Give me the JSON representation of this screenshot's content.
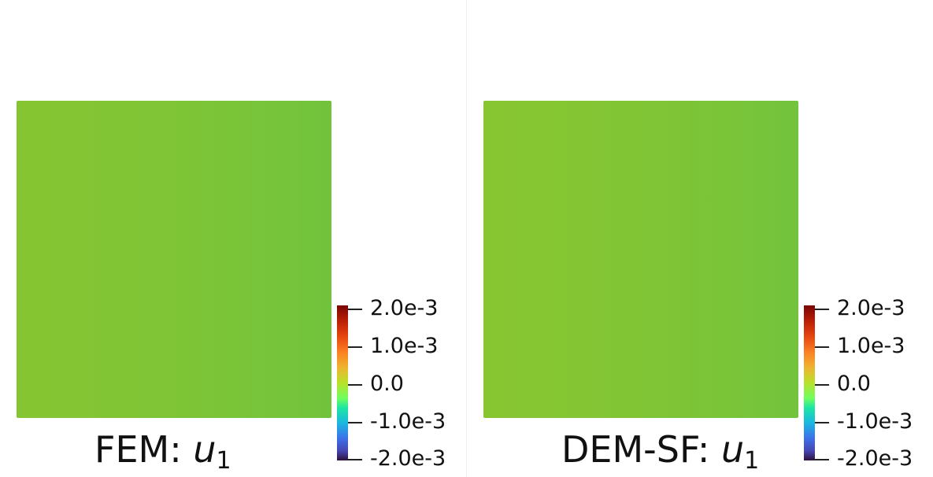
{
  "panels": [
    {
      "id": "fem",
      "title_prefix": "FEM: ",
      "variable": "u",
      "subscript": "1",
      "colorbar_ticks": [
        "2.0e-3",
        "1.0e-3",
        "0.0",
        "-1.0e-3",
        "-2.0e-3"
      ]
    },
    {
      "id": "dem-sf",
      "title_prefix": "DEM-SF: ",
      "variable": "u",
      "subscript": "1",
      "colorbar_ticks": [
        "2.0e-3",
        "1.0e-3",
        "0.0",
        "-1.0e-3",
        "-2.0e-3"
      ]
    }
  ],
  "colors": {
    "field_fill": "#80c535",
    "colorbar_top": "#7a0403",
    "colorbar_bottom": "#30123b"
  }
}
